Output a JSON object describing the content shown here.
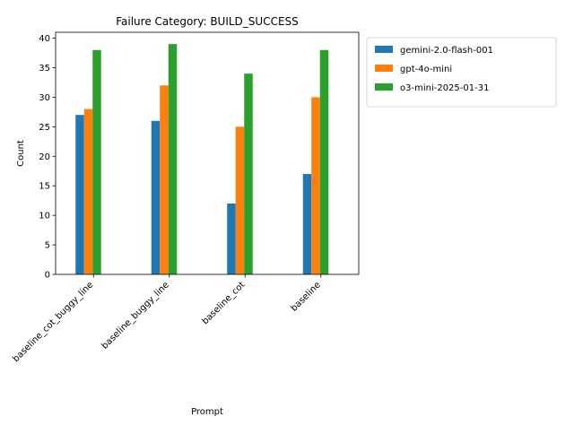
{
  "chart_data": {
    "type": "bar",
    "title": "Failure Category: BUILD_SUCCESS",
    "xlabel": "Prompt",
    "ylabel": "Count",
    "categories": [
      "baseline_cot_buggy_line",
      "baseline_buggy_line",
      "baseline_cot",
      "baseline"
    ],
    "series": [
      {
        "name": "gemini-2.0-flash-001",
        "color": "#1f77b4",
        "values": [
          27,
          26,
          12,
          17
        ]
      },
      {
        "name": "gpt-4o-mini",
        "color": "#ff7f0e",
        "values": [
          28,
          32,
          25,
          30
        ]
      },
      {
        "name": "o3-mini-2025-01-31",
        "color": "#2ca02c",
        "values": [
          38,
          39,
          34,
          38
        ]
      }
    ],
    "ylim": [
      0,
      41
    ],
    "yticks": [
      0,
      5,
      10,
      15,
      20,
      25,
      30,
      35,
      40
    ],
    "x_tick_rotation_deg": 45,
    "grid": false,
    "legend_position": "outside upper right"
  }
}
